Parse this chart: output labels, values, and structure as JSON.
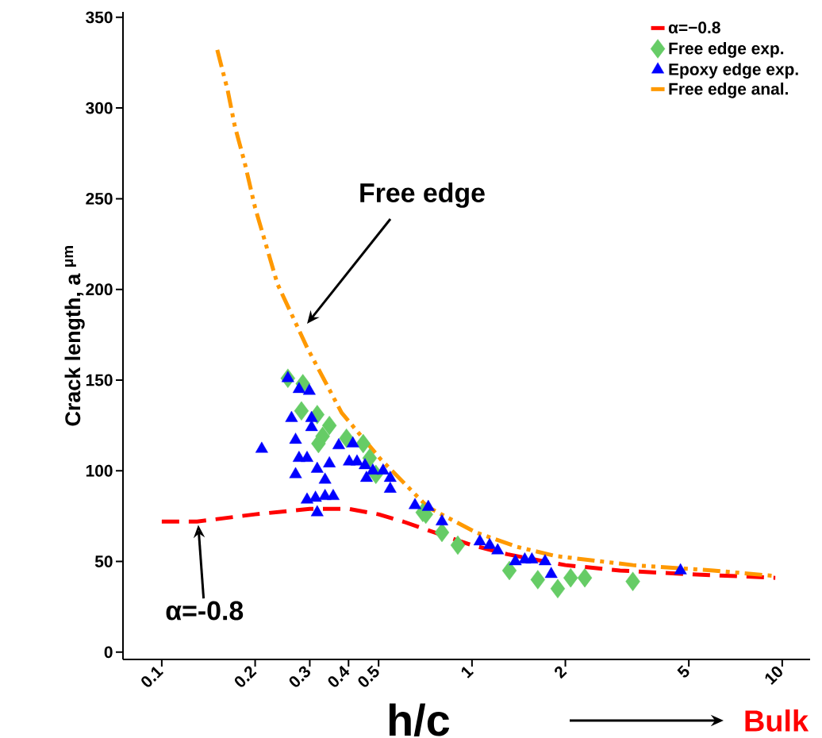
{
  "chart_data": {
    "type": "scatter",
    "xlabel": "h/c",
    "ylabel": "Crack length, a $^{μm}$",
    "log": "x",
    "xlim": [
      0.075,
      12.3
    ],
    "ylim": [
      -4,
      353
    ],
    "xticks": [
      0.1,
      0.2,
      0.3,
      0.4,
      0.5,
      1,
      2,
      5,
      10
    ],
    "yticks": [
      0,
      50,
      100,
      150,
      200,
      250,
      300,
      350
    ],
    "grid": false,
    "legend": "top right",
    "series": [
      {
        "name": "α=−0.8",
        "type": "line",
        "color": "#ff0000",
        "line_style": "dashed",
        "marker": "none",
        "x": [
          0.1,
          0.13,
          0.2,
          0.3,
          0.4,
          0.5,
          0.6,
          0.7,
          1,
          1.3,
          1.6,
          2,
          3,
          5,
          9.5
        ],
        "values": [
          72,
          72,
          76,
          79,
          79,
          76,
          72,
          68,
          59,
          54,
          51,
          48,
          45,
          43,
          41
        ]
      },
      {
        "name": "Free edge exp.",
        "color": "#66cc66",
        "marker": "diamond",
        "x": [
          0.255,
          0.285,
          0.282,
          0.317,
          0.347,
          0.33,
          0.32,
          0.394,
          0.446,
          0.468,
          0.49,
          0.694,
          0.71,
          0.8,
          0.9,
          1.32,
          1.63,
          1.89,
          2.08,
          2.31,
          3.3
        ],
        "values": [
          151,
          148,
          133,
          131,
          125,
          119,
          115,
          118,
          115,
          107,
          98,
          77,
          76,
          66,
          59,
          45,
          40,
          35,
          41,
          41,
          39
        ]
      },
      {
        "name": "Epoxy edge exp.",
        "color": "#0000ff",
        "marker": "triangle",
        "x": [
          0.21,
          0.255,
          0.277,
          0.299,
          0.262,
          0.304,
          0.304,
          0.27,
          0.277,
          0.294,
          0.27,
          0.317,
          0.347,
          0.336,
          0.294,
          0.313,
          0.336,
          0.357,
          0.317,
          0.372,
          0.413,
          0.402,
          0.426,
          0.452,
          0.479,
          0.457,
          0.517,
          0.545,
          0.545,
          0.655,
          0.723,
          0.8,
          1.06,
          1.14,
          1.21,
          1.38,
          1.48,
          1.56,
          1.72,
          1.8,
          4.7
        ],
        "values": [
          112,
          151,
          145,
          144,
          129,
          129,
          124,
          117,
          107,
          107,
          98,
          101,
          104,
          95,
          84,
          85,
          86,
          86,
          77,
          114,
          115,
          105,
          105,
          103,
          100,
          96,
          100,
          96,
          90,
          81,
          80,
          72,
          61,
          59,
          56,
          50,
          51,
          51,
          50,
          43,
          45
        ]
      },
      {
        "name": "Free edge anal.",
        "type": "line",
        "color": "#ff9900",
        "line_style": "dashdotdot",
        "marker": "none",
        "x": [
          0.151,
          0.163,
          0.172,
          0.185,
          0.2,
          0.236,
          0.294,
          0.38,
          0.51,
          0.72,
          1.03,
          1.4,
          1.86,
          3.3,
          6,
          9.5
        ],
        "values": [
          332,
          310,
          290,
          270,
          245,
          203,
          168,
          132,
          106,
          80,
          66,
          58,
          53,
          48,
          45,
          42
        ]
      }
    ],
    "annotations": [
      "Free edge",
      {
        "text": "α=-0.8",
        "x": 0.131,
        "y": 71
      },
      "Bulk"
    ]
  }
}
